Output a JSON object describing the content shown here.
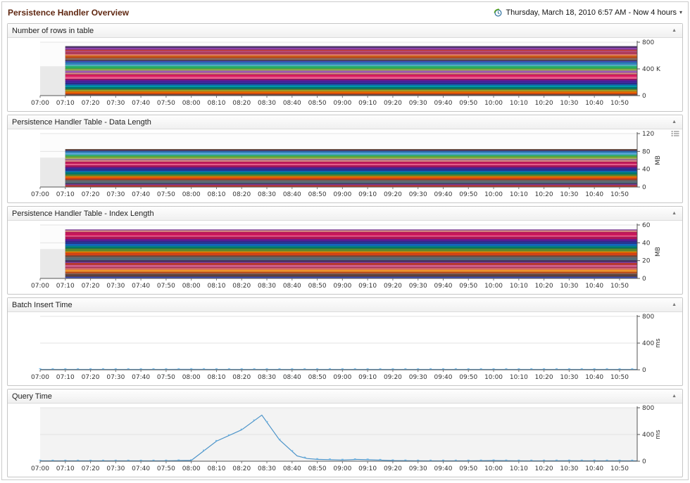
{
  "page": {
    "title": "Persistence Handler Overview"
  },
  "timeframe": {
    "label": "Thursday, March 18, 2010 6:57 AM - Now 4 hours"
  },
  "ui": {
    "collapse_glyph": "▲",
    "caret_glyph": "▾"
  },
  "colors": {
    "header_title": "#5f2711",
    "panel_border": "#c6c6c6",
    "axis_line": "#555555",
    "grid_line": "#e3e3e3",
    "line_blue": "#4d94c9",
    "marker_blue": "#74b9e6",
    "predata_gray": "#e9e9e9"
  },
  "band_palette": [
    "#4a3566",
    "#8e44ad",
    "#c0392b",
    "#d35f8d",
    "#b03a5b",
    "#e57373",
    "#f0932b",
    "#c44d16",
    "#8d6e63",
    "#5d4037",
    "#3f51b5",
    "#2980b9",
    "#5dade2",
    "#48c9b0",
    "#27ae60",
    "#7daf3c",
    "#b5ba72",
    "#9b59b6",
    "#d98880",
    "#c2185b",
    "#e91e63",
    "#f06292",
    "#ad1457",
    "#6a1b9a",
    "#4527a0",
    "#283593",
    "#1565c0",
    "#0097a7",
    "#00796b",
    "#558b2f",
    "#9e9d24",
    "#ef6c00",
    "#d84315",
    "#6d4c41",
    "#757575",
    "#546e7a"
  ],
  "x_axis": {
    "labels": [
      "07:00",
      "07:10",
      "07:20",
      "07:30",
      "07:40",
      "07:50",
      "08:00",
      "08:10",
      "08:20",
      "08:30",
      "08:40",
      "08:50",
      "09:00",
      "09:10",
      "09:20",
      "09:30",
      "09:40",
      "09:50",
      "10:00",
      "10:10",
      "10:20",
      "10:30",
      "10:40",
      "10:50"
    ],
    "domain_start": "07:00",
    "domain_span_min": 237
  },
  "panels": [
    {
      "title": "Number of rows in table"
    },
    {
      "title": "Persistence Handler Table - Data Length"
    },
    {
      "title": "Persistence Handler Table - Index Length"
    },
    {
      "title": "Batch Insert Time"
    },
    {
      "title": "Query Time"
    }
  ],
  "chart_data": [
    {
      "type": "area",
      "stacked": true,
      "title": "Number of rows in table",
      "ylim": [
        0,
        800
      ],
      "y_ticks": [
        0,
        400,
        800
      ],
      "y_tick_labels": [
        "0",
        "400 K",
        "800"
      ],
      "rotated_unit": "",
      "unit": "K",
      "data_start": "07:10",
      "stack_total_approx": 740,
      "band_count": 34,
      "palette_offset": 0,
      "plot_bg": "#fcfcfc",
      "note": "Dense stack of ~40 series (no legend shown); total ≈ 740 K rows, roughly constant from 07:10 to 10:57"
    },
    {
      "type": "area",
      "stacked": true,
      "title": "Persistence Handler Table - Data Length",
      "ylim": [
        0,
        120
      ],
      "y_ticks": [
        0,
        40,
        80,
        120
      ],
      "y_tick_labels": [
        "0",
        "40",
        "80",
        "120"
      ],
      "rotated_unit": "MB",
      "unit": "MB",
      "data_start": "07:10",
      "stack_total_approx": 85,
      "band_count": 30,
      "palette_offset": 9,
      "plot_bg": "#fcfcfc",
      "note": "Dense stack of many series; total ≈ 85 MB, roughly constant from 07:10 to 10:57"
    },
    {
      "type": "area",
      "stacked": true,
      "title": "Persistence Handler Table - Index Length",
      "ylim": [
        0,
        60
      ],
      "y_ticks": [
        0,
        20,
        40,
        60
      ],
      "y_tick_labels": [
        "0",
        "20",
        "40",
        "60"
      ],
      "rotated_unit": "MB",
      "unit": "MB",
      "data_start": "07:10",
      "stack_total_approx": 55,
      "band_count": 30,
      "palette_offset": 17,
      "plot_bg": "#fcfcfc",
      "note": "Dense stack of many series; total ≈ 55 MB, roughly constant from 07:10 to 10:57"
    },
    {
      "type": "line",
      "title": "Batch Insert Time",
      "ylim": [
        0,
        800
      ],
      "y_ticks": [
        0,
        400,
        800
      ],
      "y_tick_labels": [
        "0",
        "400",
        "800"
      ],
      "rotated_unit": "ms",
      "unit": "ms",
      "plot_bg": "#ffffff",
      "points": [
        [
          "07:00",
          6
        ],
        [
          "07:10",
          6
        ],
        [
          "07:20",
          6
        ],
        [
          "07:30",
          6
        ],
        [
          "07:40",
          6
        ],
        [
          "07:50",
          6
        ],
        [
          "08:00",
          7
        ],
        [
          "08:10",
          6
        ],
        [
          "08:20",
          6
        ],
        [
          "08:30",
          6
        ],
        [
          "08:40",
          6
        ],
        [
          "08:50",
          6
        ],
        [
          "09:00",
          6
        ],
        [
          "09:10",
          6
        ],
        [
          "09:20",
          6
        ],
        [
          "09:30",
          6
        ],
        [
          "09:40",
          6
        ],
        [
          "09:50",
          6
        ],
        [
          "10:00",
          6
        ],
        [
          "10:10",
          6
        ],
        [
          "10:20",
          6
        ],
        [
          "10:30",
          6
        ],
        [
          "10:40",
          6
        ],
        [
          "10:50",
          6
        ],
        [
          "10:57",
          6
        ]
      ]
    },
    {
      "type": "line",
      "title": "Query Time",
      "ylim": [
        0,
        800
      ],
      "y_ticks": [
        0,
        400,
        800
      ],
      "y_tick_labels": [
        "0",
        "400",
        "800"
      ],
      "rotated_unit": "ms",
      "unit": "ms",
      "plot_bg": "#f3f3f3",
      "points": [
        [
          "07:00",
          5
        ],
        [
          "07:10",
          5
        ],
        [
          "07:20",
          5
        ],
        [
          "07:30",
          5
        ],
        [
          "07:40",
          5
        ],
        [
          "07:50",
          6
        ],
        [
          "08:00",
          12
        ],
        [
          "08:10",
          300
        ],
        [
          "08:20",
          470
        ],
        [
          "08:28",
          690
        ],
        [
          "08:35",
          320
        ],
        [
          "08:42",
          80
        ],
        [
          "08:46",
          40
        ],
        [
          "08:50",
          28
        ],
        [
          "09:00",
          18
        ],
        [
          "09:06",
          26
        ],
        [
          "09:12",
          20
        ],
        [
          "09:20",
          10
        ],
        [
          "09:30",
          6
        ],
        [
          "09:40",
          6
        ],
        [
          "09:50",
          6
        ],
        [
          "10:00",
          9
        ],
        [
          "10:10",
          6
        ],
        [
          "10:20",
          6
        ],
        [
          "10:30",
          7
        ],
        [
          "10:40",
          6
        ],
        [
          "10:50",
          6
        ],
        [
          "10:57",
          6
        ]
      ]
    }
  ]
}
